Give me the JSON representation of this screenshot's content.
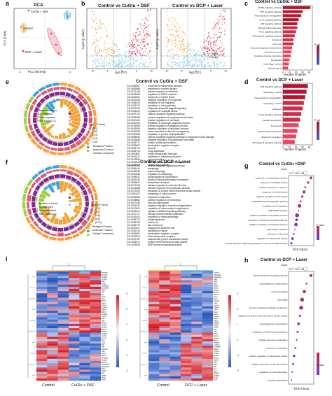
{
  "panels": {
    "a": {
      "label": "a",
      "title": "PCA",
      "xlabel": "PC1 (80.5%)",
      "ylabel": "PC2 (8.8%)",
      "groups": [
        {
          "name": "CuGlu + DSF",
          "color": "#3da2d8"
        },
        {
          "name": "Control",
          "color": "#f2a33a"
        },
        {
          "name": "DCP + Laser",
          "color": "#e0475b"
        }
      ]
    },
    "b": {
      "label": "b",
      "titles": [
        "Control vs CuGlu + DSF",
        "Control vs DCP + Laser"
      ],
      "xlabel": "log2 (FC)",
      "ylabel": "-log10 (p value)",
      "legend": [
        "Up",
        "Nodiff",
        "Down"
      ],
      "legend_colors": [
        "#e0475b",
        "#9fd4e8",
        "#f2a33a"
      ]
    },
    "c": {
      "label": "c",
      "title": "Control vs CuGlu + DSF",
      "xlabel": "Number of genes",
      "xticks": [
        "0",
        "10",
        "20",
        "30",
        "40"
      ],
      "terms": [
        "MAPK signaling pathway",
        "TNF signaling pathway",
        "Transcriptional misregulation",
        "IL-17 signaling pathway",
        "p53 signaling pathway",
        "Lipid and atherosclerosis",
        "FoxO signaling pathway",
        "NF-kappa B signaling pathway",
        "Apoptosis",
        "Cell cycle",
        "Glycosaminoglycan biosynthesis",
        "Fluid shear stress",
        "Cytokine-cytokine interaction",
        "Ferroptosis",
        "Autophagy - animal",
        "Breast cancer"
      ],
      "counts": [
        42,
        30,
        28,
        24,
        22,
        22,
        20,
        18,
        16,
        16,
        14,
        13,
        12,
        10,
        9,
        8
      ],
      "colorbar_title": "P val"
    },
    "d": {
      "label": "d",
      "title": "Control vs DCP + Laser",
      "xlabel": "Number of genes",
      "xticks": [
        "0",
        "10",
        "20",
        "30",
        "40"
      ],
      "terms": [
        "p53 signaling pathway",
        "Mitophagy - animal",
        "Transcriptional misregulation",
        "Autophagy - animal",
        "Apoptosis",
        "FoxO signaling pathway",
        "Cellular senescence",
        "Ferroptosis",
        "Lipid and atherosclerosis",
        "Endocrine resistance",
        "NF-kappa B signaling pathway"
      ],
      "counts": [
        38,
        36,
        34,
        32,
        30,
        28,
        26,
        24,
        22,
        20,
        18
      ],
      "colorbar_title": "P val"
    },
    "e": {
      "label": "e",
      "title": "Control vs CuGlu + DSF",
      "go_ids": [
        "GO:0006951",
        "GO:0006986",
        "GO:0071248",
        "GO:0043408",
        "GO:0031667",
        "GO:0030308",
        "GO:1904020",
        "GO:0042127",
        "GO:0007249",
        "GO:0043122",
        "GO:0097193",
        "GO:0043068",
        "GO:0010942",
        "GO:2000106",
        "GO:0043065",
        "GO:0043066",
        "GO:0031098",
        "GO:0090085",
        "GO:0008630",
        "GO:0043069",
        "GO:0046777",
        "GO:0005667",
        "GO:0005773",
        "GO:0005794",
        "GO:0030867",
        "GO:0001817",
        "GO:0019899",
        "GO:0033549",
        "GO:0008083"
      ],
      "go_terms": [
        "response to extracellular stimulus",
        "response to unfolded protein",
        "cellular response to metal ion",
        "regulation of MAPK cascade",
        "response to nutrient levels",
        "negative regulation of cell growth",
        "regulation of cell migration",
        "regulation of cell population",
        "I-kappaB kinase/NF-kappaB signaling",
        "regulation of I-kappaB kinase",
        "intrinsic apoptotic signaling pathway",
        "positive regulation of programmed cell death",
        "positive regulation of cell death",
        "regulation of leukocyte apoptotic process",
        "positive regulation of apoptotic process",
        "negative regulation of apoptotic process",
        "stress-activated protein kinase signaling",
        "regulation of protein deubiquitination",
        "intrinsic apoptotic signaling pathway in response to DNA damage",
        "negative regulation of programmed cell death",
        "protein autophosphorylation",
        "transcription regulator complex",
        "vacuole",
        "Golgi apparatus",
        "rough endoplasmic reticulum",
        "regulation of cytokine production",
        "enzyme binding",
        "MAP kinase phosphatase activity",
        "growth factor activity"
      ],
      "legend_items": [
        "Number of Genes",
        "Up-regulated",
        "Down-regulated",
        "Rich Factor(0-1)"
      ],
      "pval_title": "-log10 (P value)",
      "pval_bins": [
        "(0,1]",
        "(1,2]",
        "(2,3]",
        "(3,4]",
        "(4,5]"
      ],
      "categories": [
        "Biological Process",
        "Molecular Function",
        "Cellular Component"
      ]
    },
    "f": {
      "label": "f",
      "title": "Control vs DCP + Laser",
      "go_ids": [
        "GO:0097193",
        "GO:0006914",
        "GO:0016236",
        "GO:0010506",
        "GO:1905037",
        "GO:0061919",
        "GO:0046907",
        "GO:0071496",
        "GO:0031668",
        "GO:0071900",
        "GO:0000422",
        "GO:0042594",
        "GO:0045862",
        "GO:0007033",
        "GO:0031397",
        "GO:0010821",
        "GO:0019221",
        "GO:0070727",
        "GO:0016241",
        "GO:0005776",
        "GO:0005768",
        "GO:0005770",
        "GO:0000407",
        "GO:0031410",
        "GO:0005667",
        "GO:1990904",
        "GO:0019787",
        "GO:0004674",
        "GO:0033549"
      ],
      "go_terms": [
        "intrinsic apoptotic signaling pathway",
        "autophagy",
        "macroautophagy",
        "regulation of autophagy",
        "autophagosome organization",
        "process utilizing autophagic mechanism",
        "intracellular transport",
        "cellular response to external stimulus",
        "cellular response to extracellular stimulus",
        "regulation of protein serine/threonine kinase activity",
        "autophagy of mitochondrion",
        "response to starvation",
        "positive regulation of proteolysis",
        "vacuole organization",
        "negative regulation of protein ubiquitination",
        "regulation of mitochondrion organization",
        "cytokine-mediated signaling pathway",
        "cellular macromolecule localization",
        "regulation of macroautophagy",
        "autophagosome",
        "endosome",
        "late endosome",
        "phagophore assembly site",
        "cytoplasmic vesicle",
        "transcription regulator complex",
        "ribonucleoprotein complex",
        "ubiquitin-like protein transferase activity",
        "protein serine/threonine kinase activity",
        "MAP kinase phosphatase activity"
      ],
      "legend_items": [
        "Number of Genes",
        "Up-regulated",
        "Down-regulated",
        "Rich Factor(0-1)"
      ],
      "pval_title": "-log10 (P value)",
      "pval_bins": [
        "(0,2]",
        "(2,4]",
        "(4,6]",
        "(6,8]",
        "(8,10]"
      ],
      "categories": [
        "Biological Process",
        "Molecular Function",
        "Cellular Component"
      ]
    },
    "g": {
      "label": "g",
      "title": "Control vs CuGlu +DSF",
      "xlabel": "Rich Factor",
      "count_title": "Count",
      "count_values": [
        "10",
        "15",
        "20"
      ],
      "terms": [
        "response to extracellular stimulus",
        "response to unfolded protein",
        "cellular response to metal ion",
        "response to nutrient levels",
        "negative regulation of cell growth",
        "I-kappaB kinase/NF-kappaB signaling",
        "regulation of cell migration",
        "p38 MAPK cascade",
        "positive regulation of apoptotic process",
        "regulation of apoptotic signaling pathway",
        "negative regulation of apoptotic process",
        "granulocyte migration",
        "response to fatty acid",
        "regulation of transferase activity",
        "intrinsic apoptotic signaling pathway in response to DNA damage"
      ],
      "rich": [
        0.09,
        0.085,
        0.08,
        0.078,
        0.075,
        0.072,
        0.07,
        0.068,
        0.066,
        0.065,
        0.064,
        0.062,
        0.06,
        0.058,
        0.056
      ],
      "counts": [
        12,
        10,
        8,
        14,
        10,
        8,
        16,
        6,
        18,
        12,
        16,
        6,
        8,
        12,
        10
      ],
      "colorbar_title": "P value"
    },
    "h": {
      "label": "h",
      "title": "Control vs DCP + Laser",
      "xlabel": "Rich Factor",
      "count_title": "Count",
      "count_values": [
        "20",
        "30",
        "40"
      ],
      "terms": [
        "intrinsic apoptotic signaling pathway",
        "autophagosome organization",
        "macroautophagy",
        "autophagy",
        "process utilizing autophagic mechanism",
        "regulation of protein serine/threonine kinase activity",
        "autophagosome organization",
        "regulation of protein phosphorylation",
        "cellular response to starvation",
        "response to starvation",
        "positive regulation of transferase activity",
        "cellular response to external stimulus",
        "regulation of macroautophagy",
        "vacuole organization"
      ],
      "rich": [
        0.11,
        0.1,
        0.095,
        0.09,
        0.088,
        0.085,
        0.082,
        0.08,
        0.078,
        0.075,
        0.072,
        0.07,
        0.068,
        0.066
      ],
      "counts": [
        30,
        20,
        34,
        40,
        40,
        24,
        28,
        22,
        18,
        20,
        26,
        22,
        18,
        16
      ],
      "colorbar_title": "P value"
    },
    "i": {
      "label": "i",
      "left": {
        "groups": [
          "Control",
          "CuGlu + DSF"
        ],
        "scale": [
          "3",
          "2",
          "1",
          "0",
          "-1",
          "-2"
        ],
        "genes": [
          "Hspa1a",
          "Hspa1b",
          "Dnajb1",
          "Hmox1",
          "Atf3",
          "Ddit3",
          "Gadd45a",
          "Gadd45b",
          "Egr1",
          "Fos",
          "Jun",
          "Junb",
          "Ier3",
          "Trib3",
          "Sesn2",
          "Chac1",
          "Cdkn1a",
          "Mdm2",
          "Bbc3",
          "Pmaip1",
          "Txnip",
          "Klf4",
          "Klf6",
          "Dusp1",
          "Dusp5",
          "Dusp6",
          "Socs3",
          "Nfkbia",
          "Tnfaip3",
          "Cxcl1",
          "Cxcl2",
          "Il6",
          "Ccl2",
          "Mt1",
          "Mt2",
          "Slc7a11",
          "Atf4",
          "Asns",
          "Xbp1",
          "Herpud1",
          "Hspa5",
          "Sqstm1",
          "Gabarapl1",
          "Map1lc3b",
          "Ulk1",
          "Bnip3",
          "Cth",
          "Vegfa",
          "Areg",
          "Ereg"
        ]
      },
      "right": {
        "groups": [
          "Control",
          "DCP + Laser"
        ],
        "scale": [
          "3",
          "2",
          "1",
          "0",
          "-1",
          "-2"
        ],
        "genes": [
          "Sqstm1",
          "Map1lc3b",
          "Gabarapl1",
          "Ulk1",
          "Atg5",
          "Atg7",
          "Atg12",
          "Becn1",
          "Bnip3",
          "Bnip3l",
          "Pink1",
          "Prkn",
          "Optn",
          "Fundc1",
          "Tfeb",
          "Lamp1",
          "Lamp2",
          "Ctsb",
          "Ctsd",
          "Rab7",
          "Vps34",
          "Wipi1",
          "Wipi2",
          "Atg16l1",
          "Atg9a",
          "Ddit3",
          "Atf3",
          "Atf4",
          "Trib3",
          "Sesn2",
          "Chac1",
          "Bbc3",
          "Pmaip1",
          "Cdkn1a",
          "Gadd45a",
          "Mdm2",
          "Hmox1",
          "Txnip",
          "Dusp1",
          "Dusp6",
          "Socs3",
          "Klf4",
          "Egr1",
          "Fos",
          "Jun",
          "Ier3",
          "Nfkbia",
          "Tnfaip3",
          "Cxcl1",
          "Ccl2"
        ]
      }
    }
  },
  "colors": {
    "up": "#e0475b",
    "down": "#f2a33a",
    "nodiff": "#9fd4e8",
    "bar_hi": "#b5132b",
    "bar_lo": "#e8445f",
    "bar_mid": "#cf2b4a",
    "bp": "#f2a33a",
    "mf": "#3da2d8",
    "cc": "#9ad042",
    "upreg": "#7b2d8e",
    "downreg": "#f4a9b6"
  }
}
